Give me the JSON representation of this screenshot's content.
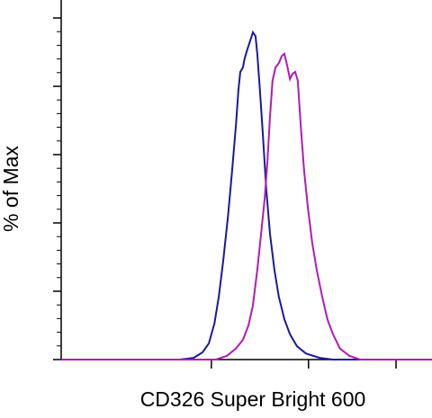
{
  "chart_data": {
    "type": "line",
    "xlabel": "CD326 Super Bright 600",
    "ylabel": "% of Max",
    "xlim": [
      0,
      100
    ],
    "ylim": [
      0,
      100
    ],
    "xticks": [
      40.5,
      66.7,
      90.3
    ],
    "yticks": [
      0,
      20,
      40,
      60,
      80,
      100
    ],
    "series": [
      {
        "color": "#1a1a9c",
        "x": [
          0,
          32.0,
          35.7,
          38.1,
          39.8,
          41.3,
          42.5,
          43.7,
          45.0,
          46.1,
          47.1,
          47.8,
          48.3,
          49.0,
          49.5,
          50.2,
          51.0,
          51.7,
          52.4,
          52.9,
          53.6,
          54.4,
          55.3,
          56.3,
          57.5,
          58.7,
          60.2,
          61.7,
          63.6,
          66.0,
          69.7,
          73.3,
          100
        ],
        "values": [
          0,
          0,
          0.5,
          2.1,
          4.7,
          10.5,
          18.4,
          28.9,
          42.1,
          55.3,
          68.4,
          78.9,
          84.2,
          85.5,
          88.2,
          90.8,
          93.4,
          95.8,
          94.7,
          89.5,
          78.9,
          65.8,
          50.0,
          36.8,
          26.3,
          18.4,
          11.8,
          7.4,
          3.9,
          1.8,
          0.5,
          0,
          0
        ]
      },
      {
        "color": "#b01cb5",
        "x": [
          0,
          41.7,
          44.7,
          47.1,
          49.0,
          50.5,
          51.7,
          52.9,
          53.9,
          54.9,
          55.6,
          56.3,
          57.0,
          57.8,
          58.7,
          59.5,
          60.2,
          60.9,
          61.7,
          62.4,
          63.1,
          63.8,
          64.6,
          65.5,
          66.5,
          67.7,
          68.9,
          70.4,
          71.8,
          73.3,
          75.2,
          77.7,
          80.6,
          100
        ],
        "values": [
          0,
          0,
          1.1,
          3.2,
          5.8,
          10.0,
          15.8,
          26.3,
          36.8,
          47.4,
          57.9,
          71.1,
          81.6,
          85.5,
          86.8,
          88.9,
          89.5,
          86.3,
          82.1,
          83.7,
          84.2,
          81.6,
          68.4,
          55.3,
          44.7,
          34.2,
          26.3,
          18.4,
          11.8,
          7.4,
          3.2,
          1.1,
          0,
          0
        ]
      }
    ]
  }
}
